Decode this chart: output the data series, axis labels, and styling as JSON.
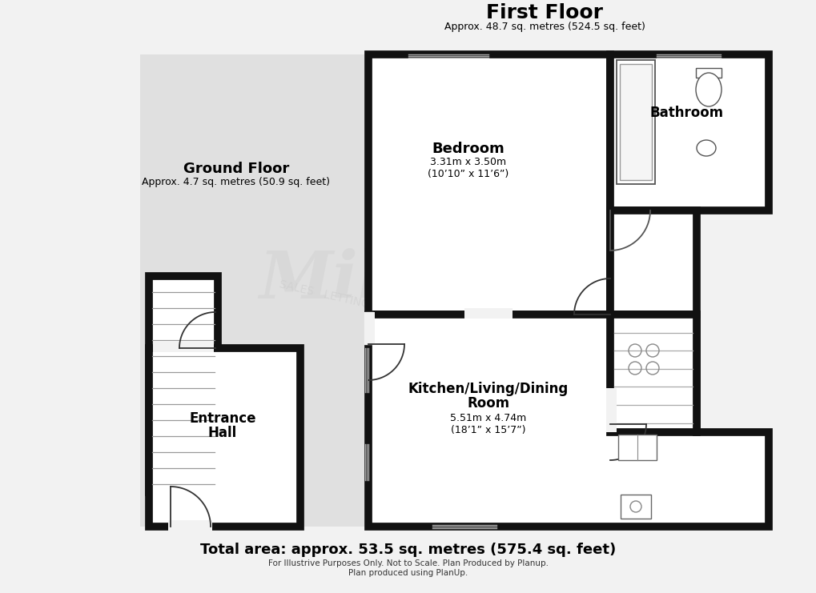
{
  "title": "First Floor",
  "subtitle": "Approx. 48.7 sq. metres (524.5 sq. feet)",
  "gf_label": "Ground Floor",
  "gf_sub": "Approx. 4.7 sq. metres (50.9 sq. feet)",
  "total_area": "Total area: approx. 53.5 sq. metres (575.4 sq. feet)",
  "disclaimer1": "For Illustrive Purposes Only. Not to Scale. Plan Produced by Planup.",
  "disclaimer2": "Plan produced using PlanUp.",
  "bg_color": "#f2f2f2",
  "gf_bg_color": "#e0e0e0",
  "wall_color": "#111111",
  "room_color": "#ffffff",
  "lw": 7,
  "thin_lw": 1.2,
  "watermark_color": "#d0d0d0",
  "rooms": {
    "bedroom": {
      "label": "Bedroom",
      "dim1": "3.31m x 3.50m",
      "dim2": "(10’10” x 11’6”)"
    },
    "bathroom": {
      "label": "Bathroom",
      "dim1": "",
      "dim2": ""
    },
    "kitchen": {
      "label": "Kitchen/Living/Dining",
      "dim1": "5.51m x 4.74m",
      "dim2": "(18’1” x 15’7”)"
    },
    "entrance": {
      "label": "Entrance",
      "dim1": "",
      "dim2": ""
    }
  }
}
